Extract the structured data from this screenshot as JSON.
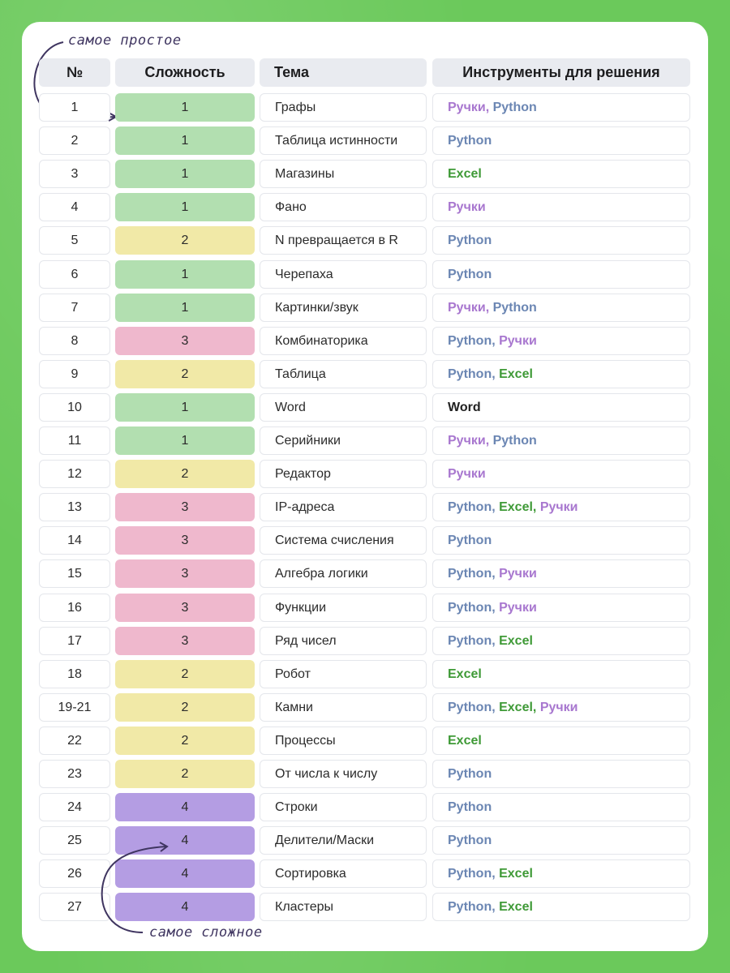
{
  "colors": {
    "background": "#6bc95b",
    "difficulty": {
      "1": "#b2dfb0",
      "2": "#f1e9a7",
      "3": "#efb8cd",
      "4": "#b49de3"
    },
    "tools": {
      "Python": "#6b86b3",
      "Ручки": "#a877cf",
      "Excel": "#3f9a37",
      "Word": "#222222"
    }
  },
  "annotations": {
    "easiest": "самое простое",
    "hardest": "самое сложное"
  },
  "headers": {
    "num": "№",
    "difficulty": "Сложность",
    "topic": "Тема",
    "tools": "Инструменты для решения"
  },
  "rows": [
    {
      "num": "1",
      "difficulty": "1",
      "topic": "Графы",
      "tools": [
        "Ручки",
        "Python"
      ]
    },
    {
      "num": "2",
      "difficulty": "1",
      "topic": "Таблица истинности",
      "tools": [
        "Python"
      ]
    },
    {
      "num": "3",
      "difficulty": "1",
      "topic": "Магазины",
      "tools": [
        "Excel"
      ]
    },
    {
      "num": "4",
      "difficulty": "1",
      "topic": "Фано",
      "tools": [
        "Ручки"
      ]
    },
    {
      "num": "5",
      "difficulty": "2",
      "topic": "N превращается в R",
      "tools": [
        "Python"
      ]
    },
    {
      "num": "6",
      "difficulty": "1",
      "topic": "Черепаха",
      "tools": [
        "Python"
      ]
    },
    {
      "num": "7",
      "difficulty": "1",
      "topic": "Картинки/звук",
      "tools": [
        "Ручки",
        "Python"
      ]
    },
    {
      "num": "8",
      "difficulty": "3",
      "topic": "Комбинаторика",
      "tools": [
        "Python",
        "Ручки"
      ]
    },
    {
      "num": "9",
      "difficulty": "2",
      "topic": "Таблица",
      "tools": [
        "Python",
        "Excel"
      ]
    },
    {
      "num": "10",
      "difficulty": "1",
      "topic": "Word",
      "tools": [
        "Word"
      ]
    },
    {
      "num": "11",
      "difficulty": "1",
      "topic": "Серийники",
      "tools": [
        "Ручки",
        "Python"
      ]
    },
    {
      "num": "12",
      "difficulty": "2",
      "topic": "Редактор",
      "tools": [
        "Ручки"
      ]
    },
    {
      "num": "13",
      "difficulty": "3",
      "topic": "IP-адреса",
      "tools": [
        "Python",
        "Excel",
        "Ручки"
      ]
    },
    {
      "num": "14",
      "difficulty": "3",
      "topic": "Система счисления",
      "tools": [
        "Python"
      ]
    },
    {
      "num": "15",
      "difficulty": "3",
      "topic": "Алгебра логики",
      "tools": [
        "Python",
        "Ручки"
      ]
    },
    {
      "num": "16",
      "difficulty": "3",
      "topic": "Функции",
      "tools": [
        "Python",
        "Ручки"
      ]
    },
    {
      "num": "17",
      "difficulty": "3",
      "topic": "Ряд чисел",
      "tools": [
        "Python",
        "Excel"
      ]
    },
    {
      "num": "18",
      "difficulty": "2",
      "topic": "Робот",
      "tools": [
        "Excel"
      ]
    },
    {
      "num": "19-21",
      "difficulty": "2",
      "topic": "Камни",
      "tools": [
        "Python",
        "Excel",
        "Ручки"
      ]
    },
    {
      "num": "22",
      "difficulty": "2",
      "topic": "Процессы",
      "tools": [
        "Excel"
      ]
    },
    {
      "num": "23",
      "difficulty": "2",
      "topic": "От числа к числу",
      "tools": [
        "Python"
      ]
    },
    {
      "num": "24",
      "difficulty": "4",
      "topic": "Строки",
      "tools": [
        "Python"
      ]
    },
    {
      "num": "25",
      "difficulty": "4",
      "topic": "Делители/Маски",
      "tools": [
        "Python"
      ]
    },
    {
      "num": "26",
      "difficulty": "4",
      "topic": "Сортировка",
      "tools": [
        "Python",
        "Excel"
      ]
    },
    {
      "num": "27",
      "difficulty": "4",
      "topic": "Кластеры",
      "tools": [
        "Python",
        "Excel"
      ]
    }
  ]
}
